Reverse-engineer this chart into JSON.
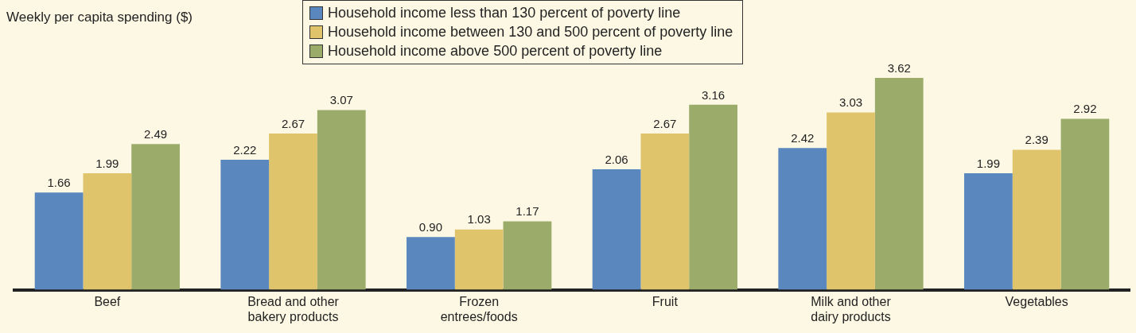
{
  "chart_data": {
    "type": "bar",
    "ylabel": "Weekly per capita spending ($)",
    "categories": [
      "Beef",
      "Bread and other bakery products",
      "Frozen entrees/foods",
      "Fruit",
      "Milk and other dairy products",
      "Vegetables"
    ],
    "series": [
      {
        "name": "Household income less than 130 percent of poverty line",
        "color": "#5b87bf",
        "values": [
          1.66,
          2.22,
          0.9,
          2.06,
          2.42,
          1.99
        ],
        "value_labels": [
          "1.66",
          "2.22",
          "0.90",
          "2.06",
          "2.42",
          "1.99"
        ]
      },
      {
        "name": "Household income between 130 and 500 percent of poverty line",
        "color": "#e0c46c",
        "values": [
          1.99,
          2.67,
          1.03,
          2.67,
          3.03,
          2.39
        ],
        "value_labels": [
          "1.99",
          "2.67",
          "1.03",
          "2.67",
          "3.03",
          "2.39"
        ]
      },
      {
        "name": "Household income above 500 percent of poverty line",
        "color": "#9aab6a",
        "values": [
          2.49,
          3.07,
          1.17,
          3.16,
          3.62,
          2.92
        ],
        "value_labels": [
          "2.49",
          "3.07",
          "1.17",
          "3.16",
          "3.62",
          "2.92"
        ]
      }
    ],
    "legend": "top",
    "grid": false
  }
}
